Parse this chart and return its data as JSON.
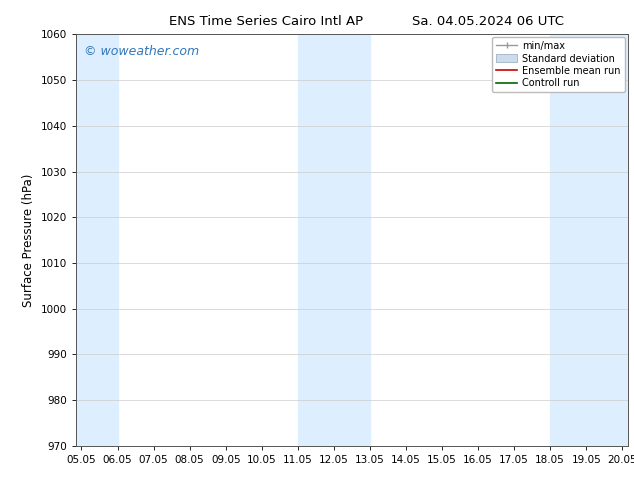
{
  "title_left": "ENS Time Series Cairo Intl AP",
  "title_right": "Sa. 04.05.2024 06 UTC",
  "ylabel": "Surface Pressure (hPa)",
  "ylim": [
    970,
    1060
  ],
  "yticks": [
    970,
    980,
    990,
    1000,
    1010,
    1020,
    1030,
    1040,
    1050,
    1060
  ],
  "xlim_start": 4.85,
  "xlim_end": 20.15,
  "xtick_labels": [
    "05.05",
    "06.05",
    "07.05",
    "08.05",
    "09.05",
    "10.05",
    "11.05",
    "12.05",
    "13.05",
    "14.05",
    "15.05",
    "16.05",
    "17.05",
    "18.05",
    "19.05",
    "20.05"
  ],
  "xtick_positions": [
    5.0,
    6.0,
    7.0,
    8.0,
    9.0,
    10.0,
    11.0,
    12.0,
    13.0,
    14.0,
    15.0,
    16.0,
    17.0,
    18.0,
    19.0,
    20.0
  ],
  "shaded_columns": [
    {
      "x_start": 4.85,
      "x_end": 6.0
    },
    {
      "x_start": 11.0,
      "x_end": 13.0
    },
    {
      "x_start": 18.0,
      "x_end": 20.15
    }
  ],
  "shaded_color": "#ddeeff",
  "bg_color": "#ffffff",
  "watermark_text": "© woweather.com",
  "watermark_color": "#3377bb",
  "title_fontsize": 9.5,
  "tick_fontsize": 7.5,
  "ylabel_fontsize": 8.5,
  "legend_fontsize": 7.0,
  "watermark_fontsize": 9
}
